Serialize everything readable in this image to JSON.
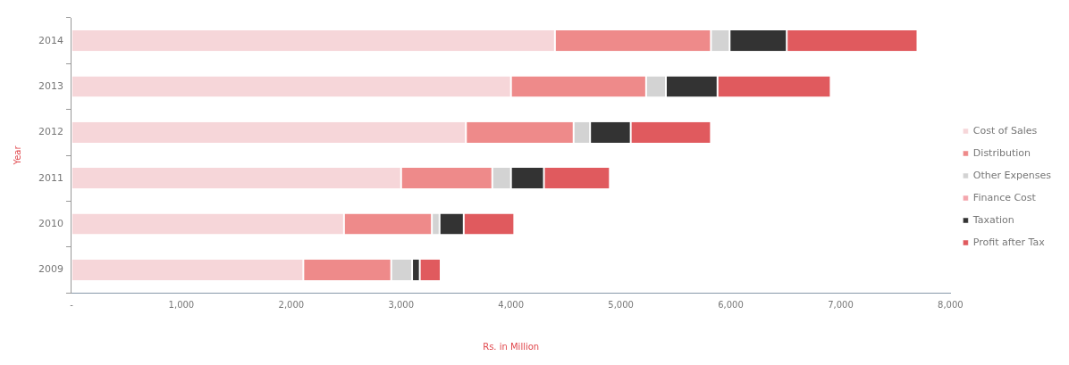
{
  "chart_data": {
    "type": "bar",
    "orientation": "horizontal",
    "stacked": true,
    "xlabel": "Rs. in Million",
    "ylabel": "Year",
    "categories": [
      "2014",
      "2013",
      "2012",
      "2011",
      "2010",
      "2009"
    ],
    "series": [
      {
        "name": "Cost of Sales",
        "color": "#f6d6d9",
        "values": [
          4400,
          4000,
          3590,
          3000,
          2480,
          2110
        ]
      },
      {
        "name": "Distribution",
        "color": "#ee8a8a",
        "values": [
          1420,
          1230,
          980,
          830,
          800,
          800
        ]
      },
      {
        "name": "Other Expenses",
        "color": "#d3d3d3",
        "values": [
          170,
          180,
          150,
          170,
          70,
          190
        ]
      },
      {
        "name": "Finance Cost",
        "color": "#f4a6ad",
        "values": [
          null,
          null,
          null,
          null,
          null,
          null
        ]
      },
      {
        "name": "Taxation",
        "color": "#333333",
        "values": [
          520,
          470,
          370,
          300,
          220,
          70
        ]
      },
      {
        "name": "Profit after Tax",
        "color": "#e05a5e",
        "values": [
          1190,
          1030,
          730,
          600,
          460,
          190
        ]
      }
    ],
    "xlim": [
      0,
      8000
    ],
    "xticks": [
      {
        "value": 0,
        "label": "-"
      },
      {
        "value": 1000,
        "label": "1,000"
      },
      {
        "value": 2000,
        "label": "2,000"
      },
      {
        "value": 3000,
        "label": "3,000"
      },
      {
        "value": 4000,
        "label": "4,000"
      },
      {
        "value": 5000,
        "label": "5,000"
      },
      {
        "value": 6000,
        "label": "6,000"
      },
      {
        "value": 7000,
        "label": "7,000"
      },
      {
        "value": 8000,
        "label": "8,000"
      }
    ],
    "grid": false,
    "legend": "right"
  }
}
